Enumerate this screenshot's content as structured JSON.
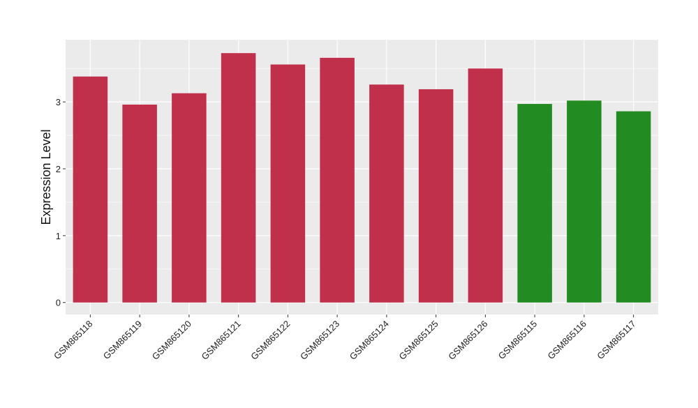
{
  "chart_data": {
    "type": "bar",
    "title": "",
    "xlabel": "",
    "ylabel": "Expression Level",
    "categories": [
      "GSM865118",
      "GSM865119",
      "GSM865120",
      "GSM865121",
      "GSM865122",
      "GSM865123",
      "GSM865124",
      "GSM865125",
      "GSM865126",
      "GSM865115",
      "GSM865116",
      "GSM865117"
    ],
    "values": [
      3.38,
      2.96,
      3.13,
      3.73,
      3.56,
      3.66,
      3.26,
      3.19,
      3.5,
      2.97,
      3.02,
      2.86
    ],
    "bar_colors": [
      "#c0304a",
      "#c0304a",
      "#c0304a",
      "#c0304a",
      "#c0304a",
      "#c0304a",
      "#c0304a",
      "#c0304a",
      "#c0304a",
      "#228b22",
      "#228b22",
      "#228b22"
    ],
    "y_ticks": [
      0,
      1,
      2,
      3
    ],
    "ylim": [
      -0.18,
      3.93
    ],
    "grid": true,
    "panel_background": "#ebebeb",
    "grid_color": "#ffffff"
  }
}
